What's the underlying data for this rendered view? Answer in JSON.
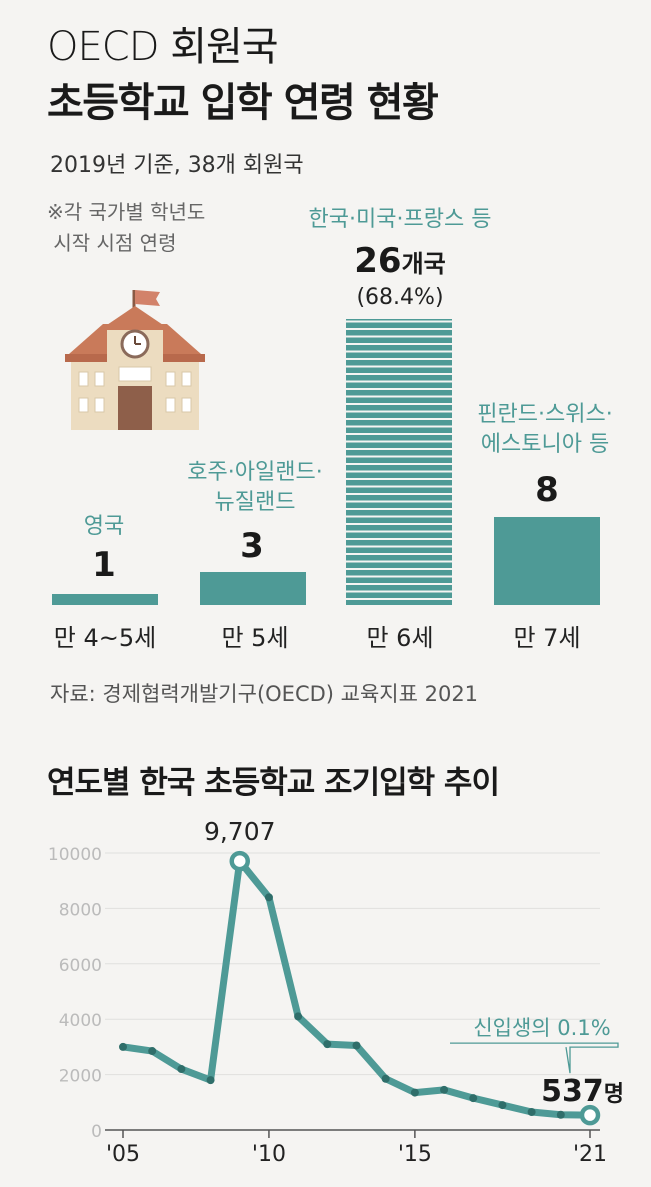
{
  "header": {
    "title_line1": "OECD 회원국",
    "title_line2": "초등학교 입학 연령 현황",
    "subtitle": "2019년 기준, 38개 회원국",
    "note": "※각 국가별 학년도\n 시작 시점 연령"
  },
  "icon": "school-building-icon",
  "colors": {
    "accent": "#4e9a96",
    "text": "#1a1a1a",
    "background": "#f5f4f2",
    "school_wall": "#ecdcc0",
    "school_roof": "#c97a5a"
  },
  "chart_data": [
    {
      "type": "bar",
      "categories": [
        "만 4~5세",
        "만 5세",
        "만 6세",
        "만 7세"
      ],
      "values": [
        1,
        3,
        26,
        8
      ],
      "value_labels": [
        "1",
        "3",
        "26",
        "8"
      ],
      "unit": "개국",
      "category_countries": [
        "영국",
        "호주·아일랜드·\n뉴질랜드",
        "한국·미국·프랑스 등",
        "핀란드·스위스·\n에스토니아 등"
      ],
      "highlight": {
        "index": 2,
        "percent_label": "(68.4%)"
      },
      "title": "",
      "xlabel": "",
      "ylabel": ""
    },
    {
      "type": "line",
      "title": "연도별 한국 초등학교 조기입학 추이",
      "x": [
        2005,
        2006,
        2007,
        2008,
        2009,
        2010,
        2011,
        2012,
        2013,
        2014,
        2015,
        2016,
        2017,
        2018,
        2019,
        2020,
        2021
      ],
      "y": [
        3000,
        2850,
        2200,
        1800,
        9707,
        8400,
        4100,
        3100,
        3050,
        1850,
        1350,
        1450,
        1150,
        900,
        650,
        550,
        537
      ],
      "x_ticks": [
        "'05",
        "'10",
        "'15",
        "'21"
      ],
      "y_ticks": [
        "0",
        "2000",
        "4000",
        "6000",
        "8000",
        "10000"
      ],
      "ylim": [
        0,
        10000
      ],
      "grid": true,
      "annotations": {
        "peak": {
          "x": 2009,
          "label": "9,707"
        },
        "last": {
          "x": 2021,
          "value_label": "537",
          "unit": "명",
          "callout": "신입생의 0.1%"
        }
      }
    }
  ],
  "source": "자료: 경제협력개발기구(OECD) 교육지표 2021"
}
